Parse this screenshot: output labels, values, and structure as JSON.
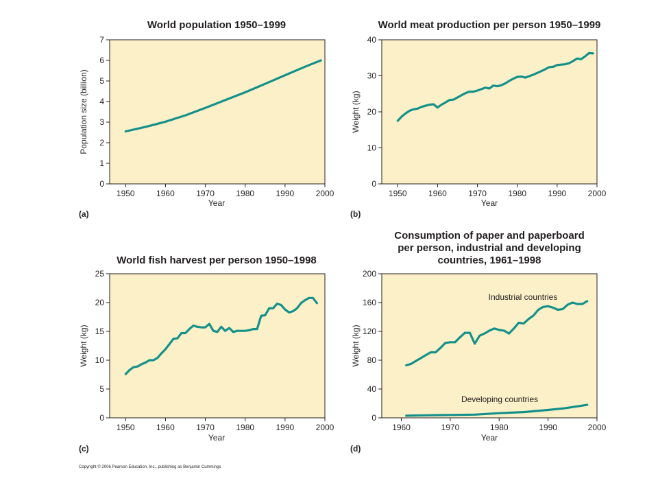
{
  "copyright": "Copyright © 2006 Pearson Education, Inc., publishing as Benjamin Cummings",
  "colors": {
    "plot_background": "#fbf0c8",
    "line": "#14908a",
    "frame": "#231f20"
  },
  "chart_data": [
    {
      "type": "line",
      "tag": "(a)",
      "title": [
        "World population 1950–1999"
      ],
      "xlabel": "Year",
      "ylabel": "Population size (billion)",
      "xlim": [
        1946,
        2000
      ],
      "ylim": [
        0,
        7
      ],
      "xticks": [
        1950,
        1960,
        1970,
        1980,
        1990,
        2000
      ],
      "yticks": [
        0,
        1,
        2,
        3,
        4,
        5,
        6,
        7
      ],
      "grid": false,
      "series": [
        {
          "x": [
            1950,
            1955,
            1960,
            1965,
            1970,
            1975,
            1980,
            1985,
            1990,
            1995,
            1999
          ],
          "y": [
            2.55,
            2.77,
            3.02,
            3.33,
            3.69,
            4.07,
            4.45,
            4.86,
            5.28,
            5.69,
            6.0
          ]
        }
      ]
    },
    {
      "type": "line",
      "tag": "(b)",
      "title": [
        "World meat production per person 1950–1999"
      ],
      "xlabel": "Year",
      "ylabel": "Weight (kg)",
      "xlim": [
        1946,
        2000
      ],
      "ylim": [
        0,
        40
      ],
      "xticks": [
        1950,
        1960,
        1970,
        1980,
        1990,
        2000
      ],
      "yticks": [
        0,
        10,
        20,
        30,
        40
      ],
      "grid": false,
      "series": [
        {
          "x": [
            1950,
            1951,
            1952,
            1953,
            1954,
            1955,
            1956,
            1957,
            1958,
            1959,
            1960,
            1961,
            1962,
            1963,
            1964,
            1965,
            1966,
            1967,
            1968,
            1969,
            1970,
            1971,
            1972,
            1973,
            1974,
            1975,
            1976,
            1977,
            1978,
            1979,
            1980,
            1981,
            1982,
            1983,
            1984,
            1985,
            1986,
            1987,
            1988,
            1989,
            1990,
            1991,
            1992,
            1993,
            1994,
            1995,
            1996,
            1997,
            1998,
            1999
          ],
          "y": [
            17.5,
            18.7,
            19.6,
            20.3,
            20.7,
            20.9,
            21.4,
            21.7,
            22.0,
            22.1,
            21.2,
            22.0,
            22.6,
            23.3,
            23.4,
            24.0,
            24.6,
            25.2,
            25.6,
            25.6,
            25.9,
            26.3,
            26.7,
            26.5,
            27.3,
            27.1,
            27.4,
            27.9,
            28.6,
            29.2,
            29.7,
            29.8,
            29.5,
            29.9,
            30.3,
            30.8,
            31.3,
            31.8,
            32.4,
            32.5,
            33.0,
            33.1,
            33.2,
            33.5,
            34.1,
            34.8,
            34.6,
            35.4,
            36.3,
            36.2
          ]
        }
      ]
    },
    {
      "type": "line",
      "tag": "(c)",
      "title": [
        "World fish harvest per person 1950–1998"
      ],
      "xlabel": "Year",
      "ylabel": "Weight (kg)",
      "xlim": [
        1946,
        2000
      ],
      "ylim": [
        0,
        25
      ],
      "xticks": [
        1950,
        1960,
        1970,
        1980,
        1990,
        2000
      ],
      "yticks": [
        0,
        5,
        10,
        15,
        20,
        25
      ],
      "grid": false,
      "series": [
        {
          "x": [
            1950,
            1951,
            1952,
            1953,
            1954,
            1955,
            1956,
            1957,
            1958,
            1959,
            1960,
            1961,
            1962,
            1963,
            1964,
            1965,
            1966,
            1967,
            1968,
            1969,
            1970,
            1971,
            1972,
            1973,
            1974,
            1975,
            1976,
            1977,
            1978,
            1979,
            1980,
            1981,
            1982,
            1983,
            1984,
            1985,
            1986,
            1987,
            1988,
            1989,
            1990,
            1991,
            1992,
            1993,
            1994,
            1995,
            1996,
            1997,
            1998
          ],
          "y": [
            7.6,
            8.3,
            8.8,
            8.9,
            9.3,
            9.6,
            10.0,
            10.0,
            10.4,
            11.2,
            11.9,
            12.8,
            13.7,
            13.8,
            14.7,
            14.7,
            15.4,
            16.0,
            15.8,
            15.7,
            15.7,
            16.3,
            15.1,
            14.9,
            15.8,
            15.1,
            15.6,
            14.9,
            15.1,
            15.1,
            15.1,
            15.2,
            15.4,
            15.4,
            17.7,
            17.8,
            19.0,
            19.0,
            19.8,
            19.6,
            18.8,
            18.3,
            18.5,
            19.0,
            19.9,
            20.4,
            20.8,
            20.8,
            19.9
          ]
        }
      ]
    },
    {
      "type": "line",
      "tag": "(d)",
      "title": [
        "Consumption of paper and paperboard",
        "per person, industrial and developing",
        "countries, 1961–1998"
      ],
      "xlabel": "Year",
      "ylabel": "Weight (kg)",
      "xlim": [
        1956,
        2000
      ],
      "ylim": [
        0,
        200
      ],
      "xticks": [
        1960,
        1970,
        1980,
        1990,
        2000
      ],
      "yticks": [
        0,
        40,
        80,
        120,
        160,
        200
      ],
      "grid": false,
      "series": [
        {
          "name": "Industrial countries",
          "x": [
            1961,
            1962,
            1963,
            1964,
            1965,
            1966,
            1967,
            1968,
            1969,
            1970,
            1971,
            1972,
            1973,
            1974,
            1975,
            1976,
            1977,
            1978,
            1979,
            1980,
            1981,
            1982,
            1983,
            1984,
            1985,
            1986,
            1987,
            1988,
            1989,
            1990,
            1991,
            1992,
            1993,
            1994,
            1995,
            1996,
            1997,
            1998
          ],
          "y": [
            73,
            75,
            79,
            83,
            87,
            91,
            91,
            97,
            104,
            105,
            105,
            112,
            118,
            118,
            103,
            114,
            117,
            121,
            124,
            122,
            121,
            117,
            124,
            132,
            131,
            137,
            142,
            150,
            154,
            155,
            153,
            150,
            151,
            157,
            160,
            158,
            158,
            162
          ]
        },
        {
          "name": "Developing countries",
          "x": [
            1961,
            1965,
            1970,
            1975,
            1980,
            1985,
            1990,
            1993,
            1995,
            1998
          ],
          "y": [
            3,
            3.5,
            4,
            4.5,
            6.5,
            8,
            11,
            13,
            15,
            18
          ]
        }
      ]
    }
  ]
}
